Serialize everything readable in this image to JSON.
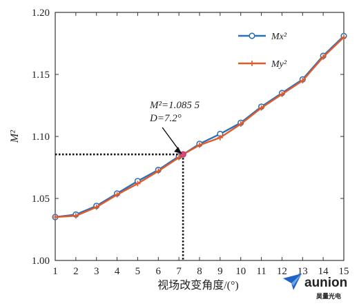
{
  "chart_data": {
    "type": "line",
    "xlabel": "视场改变角度/(°)",
    "ylabel": "M²",
    "xlim": [
      1,
      15
    ],
    "ylim": [
      1.0,
      1.2
    ],
    "x_ticks": [
      "1",
      "2",
      "3",
      "4",
      "5",
      "6",
      "7",
      "8",
      "9",
      "10",
      "11",
      "12",
      "13",
      "14",
      "15"
    ],
    "y_ticks": [
      "1.00",
      "1.05",
      "1.10",
      "1.15",
      "1.20"
    ],
    "x": [
      1,
      2,
      3,
      4,
      5,
      6,
      7,
      7.2,
      8,
      9,
      10,
      11,
      12,
      13,
      14,
      15
    ],
    "series": [
      {
        "name": "Mx²",
        "color": "#2e6fb5",
        "marker": "circle",
        "values": [
          1.035,
          1.037,
          1.044,
          1.054,
          1.064,
          1.073,
          1.084,
          1.0855,
          1.094,
          1.102,
          1.111,
          1.124,
          1.135,
          1.146,
          1.165,
          1.181
        ]
      },
      {
        "name": "My²",
        "color": "#e05a2b",
        "marker": "plus",
        "values": [
          1.035,
          1.036,
          1.043,
          1.053,
          1.062,
          1.072,
          1.083,
          1.0855,
          1.093,
          1.099,
          1.11,
          1.123,
          1.134,
          1.145,
          1.164,
          1.18
        ]
      }
    ],
    "legend_position": "top-right",
    "grid": false,
    "annotation": {
      "line1": "M²=1.085 5",
      "line2": "D=7.2°",
      "x": 7.2,
      "y": 1.0855
    }
  },
  "watermark": {
    "brand": "aunion",
    "sub": "昊量光电",
    "color": "#1f63c6"
  }
}
